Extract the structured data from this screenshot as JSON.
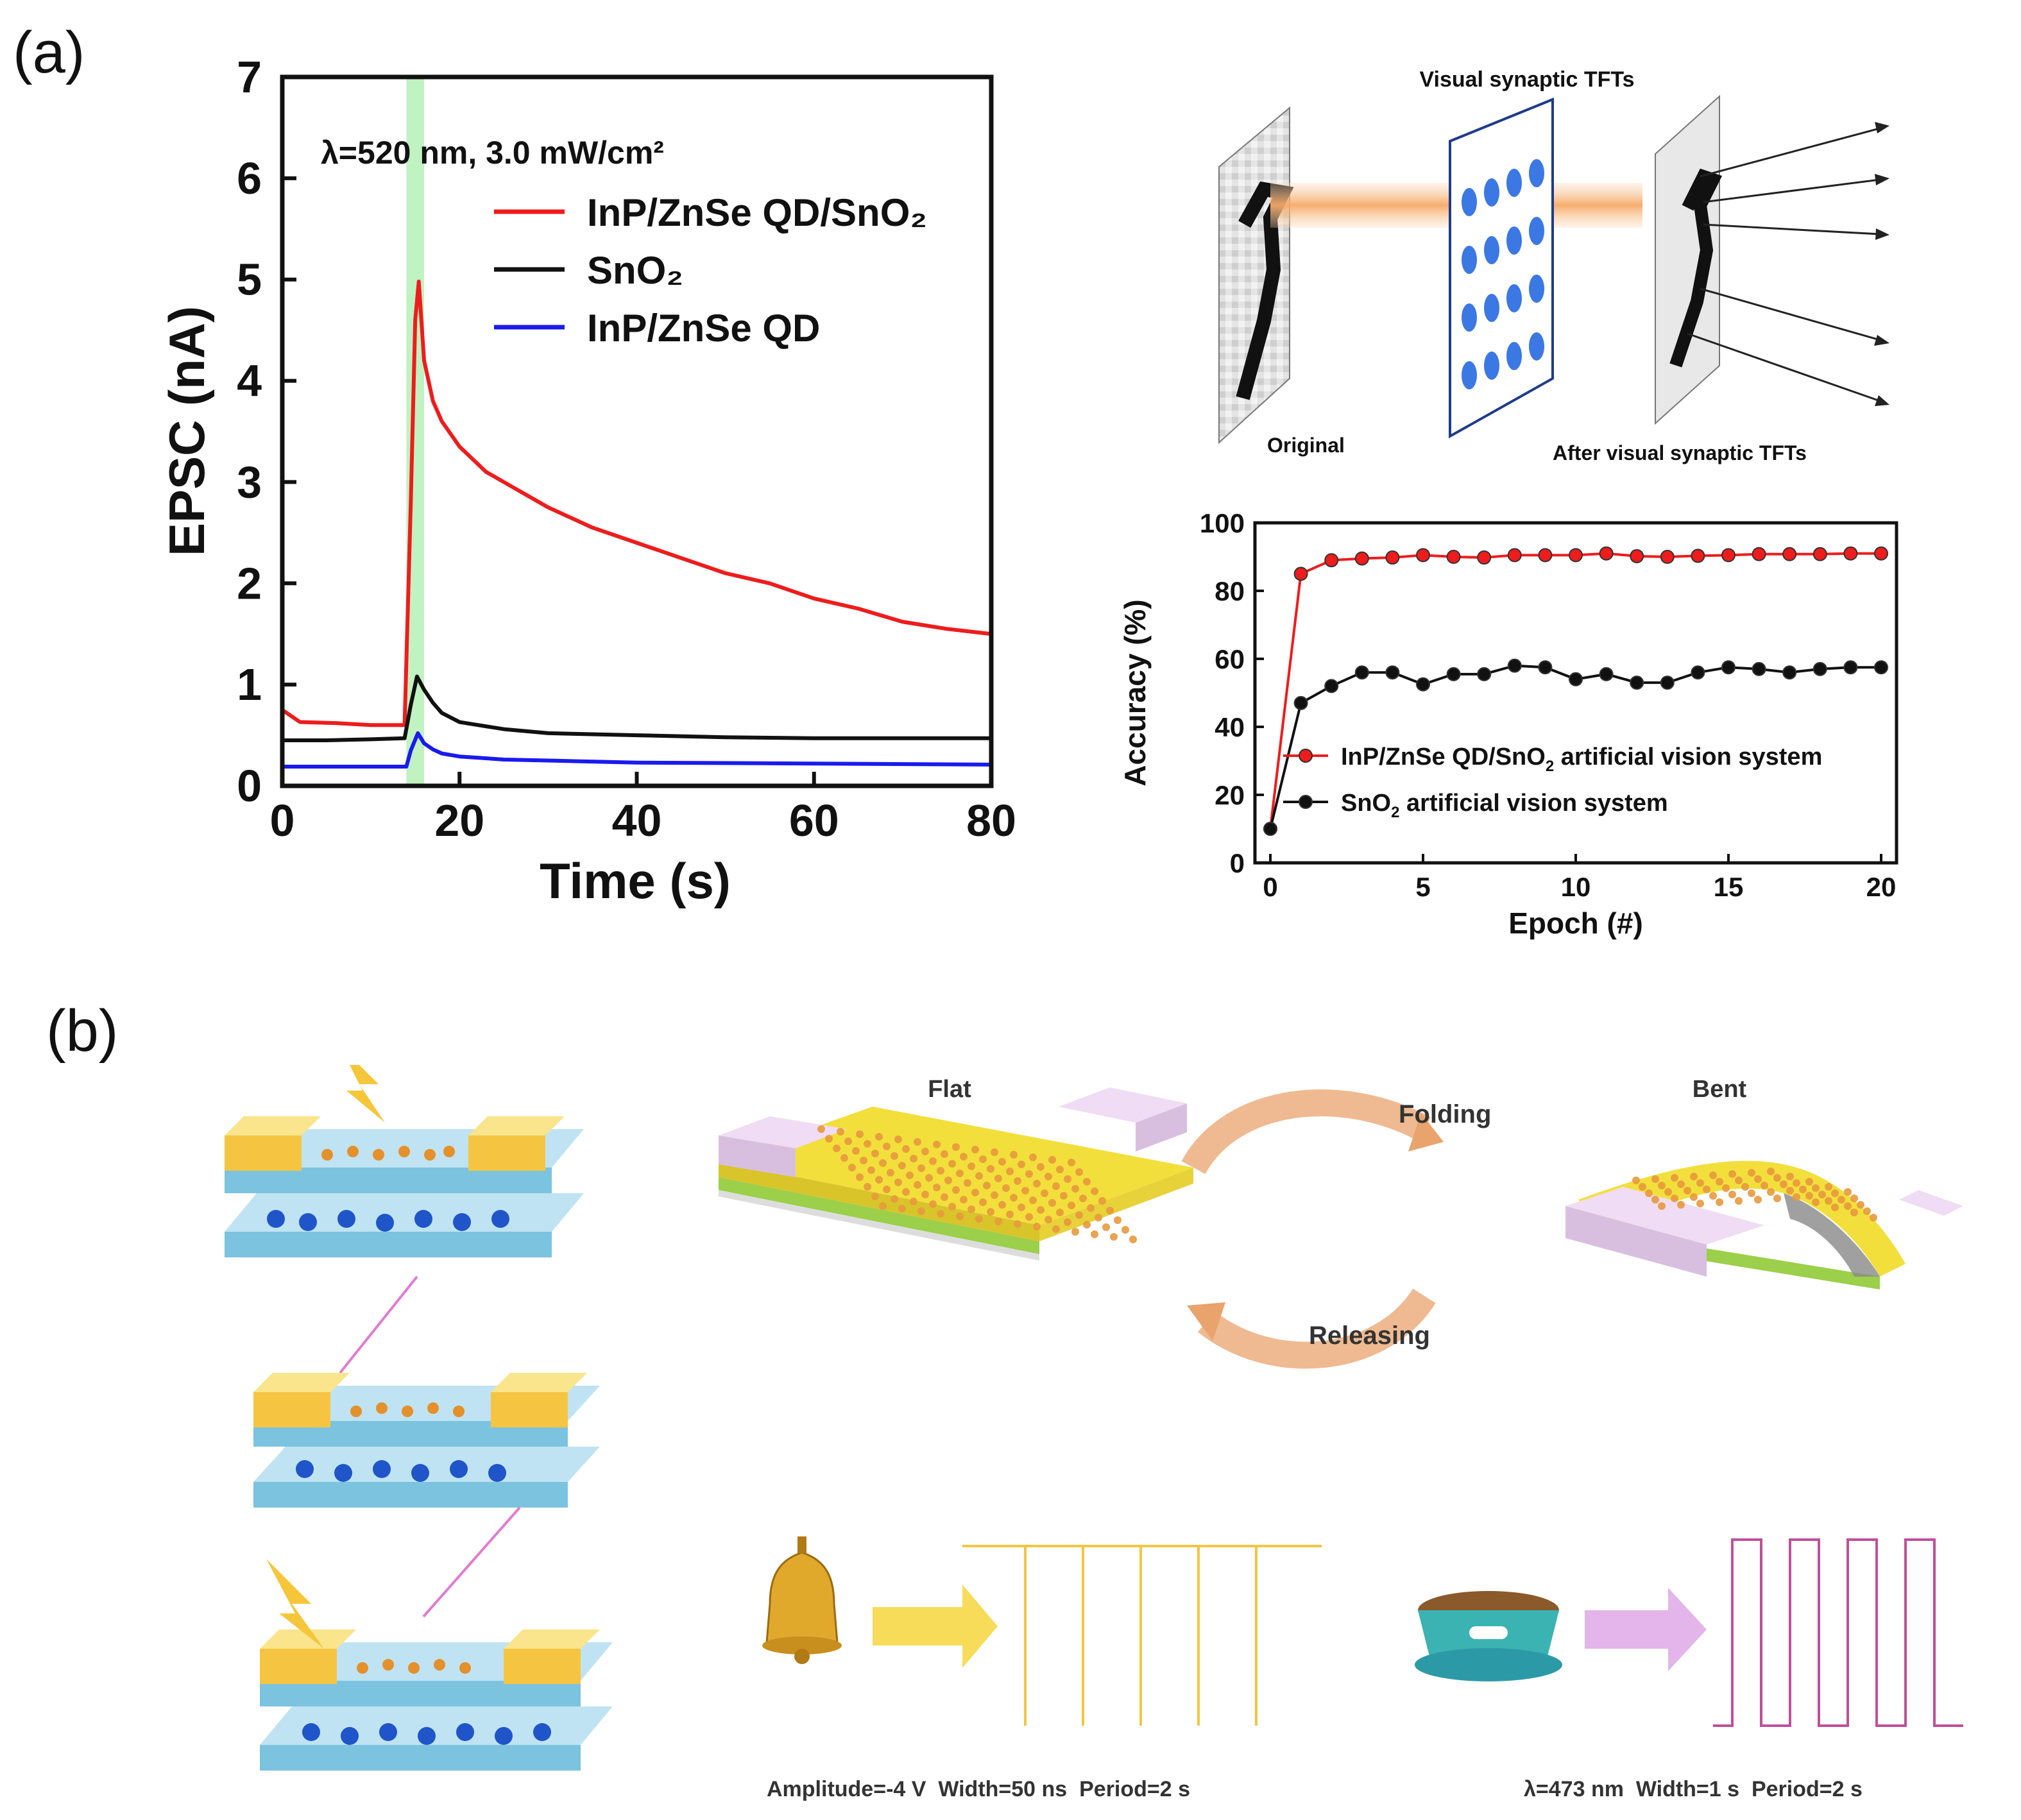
{
  "panel_a_label": "(a)",
  "panel_b_label": "(b)",
  "chart_data": [
    {
      "type": "line",
      "xlabel": "Time (s)",
      "ylabel": "EPSC (nA)",
      "xlim": [
        0,
        80
      ],
      "ylim": [
        0,
        7
      ],
      "xticks": [
        "0",
        "20",
        "40",
        "60",
        "80"
      ],
      "yticks": [
        "0",
        "1",
        "2",
        "3",
        "4",
        "5",
        "6",
        "7"
      ],
      "annotation": "λ=520 nm, 3.0 mW/cm²",
      "illumination_window": [
        14,
        16
      ],
      "legend_position": "top-right",
      "series": [
        {
          "name": "InP/ZnSe QD/SnO₂",
          "color": "#ee1c1c",
          "x": [
            0,
            2,
            6,
            10,
            13.8,
            14.5,
            15.0,
            15.4,
            16,
            17,
            18,
            20,
            23,
            26,
            30,
            35,
            40,
            45,
            50,
            55,
            60,
            65,
            70,
            75,
            80
          ],
          "y": [
            0.75,
            0.63,
            0.62,
            0.6,
            0.6,
            2.8,
            4.6,
            4.98,
            4.2,
            3.8,
            3.6,
            3.35,
            3.1,
            2.95,
            2.75,
            2.55,
            2.4,
            2.25,
            2.1,
            2.0,
            1.85,
            1.75,
            1.62,
            1.55,
            1.5
          ]
        },
        {
          "name": "SnO₂",
          "color": "#111111",
          "x": [
            0,
            5,
            10,
            13.8,
            14.5,
            15.2,
            16,
            17,
            18,
            20,
            25,
            30,
            40,
            50,
            60,
            70,
            80
          ],
          "y": [
            0.45,
            0.45,
            0.46,
            0.47,
            0.8,
            1.08,
            0.95,
            0.82,
            0.72,
            0.63,
            0.56,
            0.52,
            0.5,
            0.48,
            0.47,
            0.47,
            0.47
          ]
        },
        {
          "name": "InP/ZnSe QD",
          "color": "#1a1aee",
          "x": [
            0,
            5,
            10,
            14,
            14.5,
            15.3,
            16,
            17,
            18,
            20,
            25,
            30,
            40,
            60,
            80
          ],
          "y": [
            0.19,
            0.19,
            0.19,
            0.19,
            0.35,
            0.52,
            0.42,
            0.36,
            0.32,
            0.29,
            0.26,
            0.25,
            0.23,
            0.22,
            0.21
          ]
        }
      ]
    },
    {
      "type": "line",
      "xlabel": "Epoch (#)",
      "ylabel": "Accuracy (%)",
      "xlim": [
        0,
        20
      ],
      "ylim": [
        0,
        100
      ],
      "xticks": [
        "0",
        "5",
        "10",
        "15",
        "20"
      ],
      "yticks": [
        "0",
        "20",
        "40",
        "60",
        "80",
        "100"
      ],
      "legend_position": "bottom-right",
      "series": [
        {
          "name": "InP/ZnSe QD/SnO",
          "sub": "2",
          "suffix": " artificial vision system",
          "color": "#ee1c1c",
          "x": [
            0,
            1,
            2,
            3,
            4,
            5,
            6,
            7,
            8,
            9,
            10,
            11,
            12,
            13,
            14,
            15,
            16,
            17,
            18,
            19,
            20
          ],
          "y": [
            10,
            85,
            89,
            89.5,
            89.8,
            90.5,
            90,
            89.8,
            90.5,
            90.5,
            90.5,
            91,
            90.2,
            90,
            90.3,
            90.5,
            90.8,
            90.8,
            90.8,
            91,
            91
          ]
        },
        {
          "name": "SnO",
          "sub": "2",
          "suffix": " artificial vision system",
          "color": "#111111",
          "x": [
            0,
            1,
            2,
            3,
            4,
            5,
            6,
            7,
            8,
            9,
            10,
            11,
            12,
            13,
            14,
            15,
            16,
            17,
            18,
            19,
            20
          ],
          "y": [
            10,
            47,
            52,
            56,
            56,
            52.5,
            55.5,
            55.5,
            58,
            57.5,
            54,
            55.5,
            53,
            53,
            56,
            57.5,
            57,
            56,
            57,
            57.5,
            57.5
          ]
        }
      ]
    }
  ],
  "vision_diagram": {
    "title": "Visual synaptic TFTs",
    "original_label": "Original",
    "after_label": "After visual synaptic TFTs"
  },
  "flex_diagram": {
    "flat_label": "Flat",
    "bent_label": "Bent",
    "folding_label": "Folding",
    "releasing_label": "Releasing"
  },
  "stimulus": {
    "bell_caption": "Amplitude=-4 V  Width=50 ns  Period=2 s",
    "food_caption": "λ=473 nm  Width=1 s  Period=2 s"
  },
  "colors": {
    "red": "#ee1c1c",
    "black": "#111111",
    "blue": "#1a1aee",
    "green_band": "#b6f0b6",
    "gold": "#f5c542",
    "pulse_purple": "#c0509a",
    "arrow_tan": "#e9a36c"
  }
}
